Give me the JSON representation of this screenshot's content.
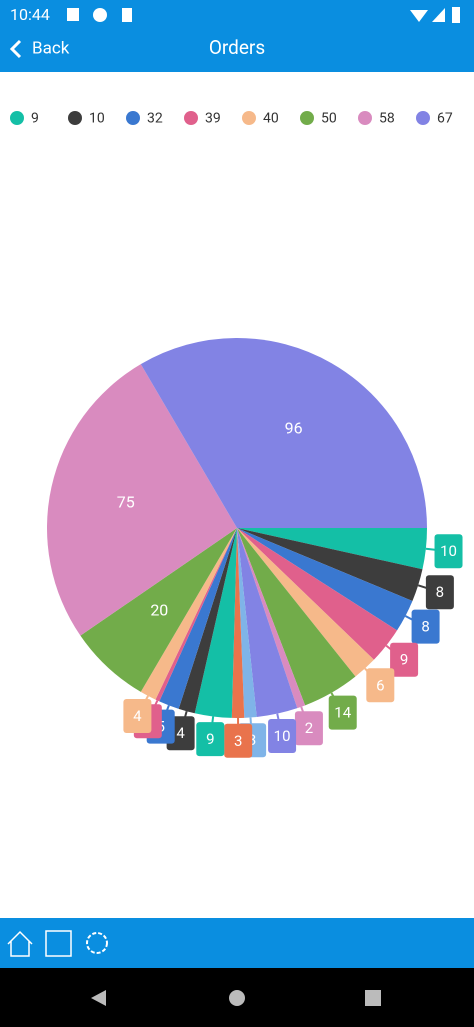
{
  "status_bar": {
    "time": "10:44"
  },
  "header": {
    "back": "Back",
    "title": "Orders"
  },
  "chart_data": {
    "type": "pie",
    "series": [
      {
        "name": "9",
        "color": "#14bfa6",
        "values": [
          10,
          9
        ]
      },
      {
        "name": "10",
        "color": "#3d3d3d",
        "values": [
          8,
          4
        ]
      },
      {
        "name": "32",
        "color": "#3a78d0",
        "values": [
          8,
          5
        ]
      },
      {
        "name": "39",
        "color": "#e0608c",
        "values": [
          9,
          1
        ]
      },
      {
        "name": "40",
        "color": "#f6b98a",
        "values": [
          6,
          4
        ]
      },
      {
        "name": "50",
        "color": "#72ac4a",
        "values": [
          14,
          20
        ]
      },
      {
        "name": "58",
        "color": "#d98bbf",
        "values": [
          2,
          75
        ]
      },
      {
        "name": "67",
        "color": "#8283e4",
        "values": [
          10,
          96
        ]
      },
      {
        "name": null,
        "color": "#7fb4e8",
        "values": [
          3,
          null
        ]
      },
      {
        "name": null,
        "color": "#e9734c",
        "values": [
          3,
          null
        ]
      }
    ]
  }
}
